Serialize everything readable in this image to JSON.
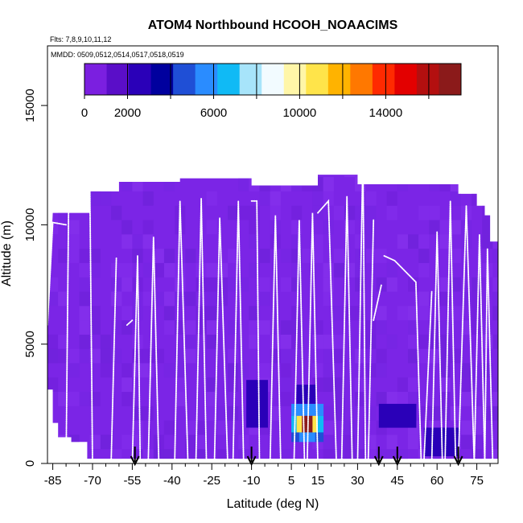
{
  "chart_data": {
    "type": "heatmap",
    "title": "ATOM4 Northbound HCOOH_NOAACIMS",
    "flights_label": "Flts: 7,8,9,10,11,12",
    "dates_label": "MMDD: 0509,0512,0514,0517,0518,0519",
    "xlabel": "Latitude (deg N)",
    "ylabel": "Altitude (m)",
    "xlim": [
      -87,
      83
    ],
    "ylim": [
      0,
      17500
    ],
    "x_ticks": [
      -85,
      -70,
      -55,
      -40,
      -25,
      -10,
      5,
      15,
      30,
      45,
      60,
      75
    ],
    "x_minor_ticks": [
      -80,
      -75,
      -65,
      -60,
      -50,
      -45,
      -35,
      -30,
      -20,
      -15,
      -5,
      0,
      10,
      20,
      25,
      35,
      40,
      50,
      55,
      65,
      70,
      80
    ],
    "y_ticks": [
      0,
      5000,
      10000,
      15000
    ],
    "colorbar": {
      "range": [
        0,
        17500
      ],
      "tick_labels": [
        0,
        2000,
        6000,
        10000,
        14000
      ],
      "colors": [
        "#7b1fe0",
        "#5a0ec8",
        "#2a00b8",
        "#00009e",
        "#1f4fd6",
        "#2a8cff",
        "#10baf5",
        "#a7e4fa",
        "#f2fbff",
        "#fff6a8",
        "#ffe44a",
        "#ffb300",
        "#ff7800",
        "#ff2a00",
        "#e30000",
        "#b30f0f",
        "#8b1a1a"
      ]
    },
    "curtain_top_profile": [
      [
        -87,
        5800
      ],
      [
        -85,
        10500
      ],
      [
        -71,
        10500
      ],
      [
        -71,
        11400
      ],
      [
        -60,
        11400
      ],
      [
        -60,
        11800
      ],
      [
        -37,
        11800
      ],
      [
        -37,
        11950
      ],
      [
        -10,
        11950
      ],
      [
        -10,
        11650
      ],
      [
        15,
        11650
      ],
      [
        15,
        12100
      ],
      [
        30,
        12100
      ],
      [
        30,
        11700
      ],
      [
        68,
        11700
      ],
      [
        68,
        11300
      ],
      [
        75,
        11300
      ],
      [
        75,
        10800
      ],
      [
        78,
        10800
      ],
      [
        78,
        10400
      ],
      [
        80,
        10400
      ],
      [
        80,
        9300
      ],
      [
        83,
        9300
      ]
    ],
    "curtain_bottom_profile": [
      [
        -87,
        3100
      ],
      [
        -85,
        3100
      ],
      [
        -85,
        1700
      ],
      [
        -83,
        1700
      ],
      [
        -83,
        1100
      ],
      [
        -78,
        1100
      ],
      [
        -78,
        900
      ],
      [
        -72,
        900
      ],
      [
        -72,
        200
      ],
      [
        83,
        200
      ]
    ],
    "high_spots": [
      {
        "lat_range": [
          5,
          17
        ],
        "alt_range": [
          1300,
          2000
        ],
        "value_profile": [
          6500,
          11000,
          16500,
          16500,
          11000,
          6500
        ]
      },
      {
        "lat_range": [
          5,
          17
        ],
        "alt_range": [
          2000,
          2500
        ],
        "value_profile": [
          5500,
          6000,
          6000,
          6000,
          5500
        ]
      },
      {
        "lat_range": [
          5,
          17
        ],
        "alt_range": [
          900,
          1300
        ],
        "value_profile": [
          5000,
          5800,
          5800,
          5000
        ]
      },
      {
        "lat_range": [
          7,
          14
        ],
        "alt_range": [
          2500,
          3300
        ],
        "value_profile": [
          2500,
          2800,
          2500
        ]
      },
      {
        "lat_range": [
          -12,
          -4
        ],
        "alt_range": [
          1500,
          3500
        ],
        "value_profile": [
          2800
        ]
      },
      {
        "lat_range": [
          38,
          52
        ],
        "alt_range": [
          1500,
          2500
        ],
        "value_profile": [
          2600
        ]
      },
      {
        "lat_range": [
          55,
          68
        ],
        "alt_range": [
          300,
          1500
        ],
        "value_profile": [
          2400
        ]
      }
    ],
    "flight_tracks": [
      {
        "lat": [
          -87,
          -85,
          -80
        ],
        "alt": [
          5800,
          10100,
          10000
        ]
      },
      {
        "lat": [
          -80,
          -79,
          -71,
          -70
        ],
        "alt": [
          0,
          11200,
          11400,
          0
        ]
      },
      {
        "lat": [
          -63,
          -61
        ],
        "alt": [
          0,
          8600
        ]
      },
      {
        "lat": [
          -57,
          -55
        ],
        "alt": [
          5800,
          6000
        ]
      },
      {
        "lat": [
          -55,
          -53,
          -52
        ],
        "alt": [
          0,
          8700,
          0
        ]
      },
      {
        "lat": [
          -49,
          -47,
          -45
        ],
        "alt": [
          0,
          9500,
          0
        ]
      },
      {
        "lat": [
          -39,
          -37,
          -34
        ],
        "alt": [
          0,
          11000,
          0
        ]
      },
      {
        "lat": [
          -31,
          -29,
          -27
        ],
        "alt": [
          0,
          11100,
          0
        ]
      },
      {
        "lat": [
          -24,
          -22,
          -19
        ],
        "alt": [
          0,
          10300,
          0
        ]
      },
      {
        "lat": [
          -17,
          -15,
          -13
        ],
        "alt": [
          0,
          11000,
          0
        ]
      },
      {
        "lat": [
          -10,
          -8
        ],
        "alt": [
          11000,
          11000
        ]
      },
      {
        "lat": [
          -8,
          -7
        ],
        "alt": [
          11000,
          0
        ]
      },
      {
        "lat": [
          -3,
          -1,
          1
        ],
        "alt": [
          0,
          10400,
          0
        ]
      },
      {
        "lat": [
          6,
          8,
          10
        ],
        "alt": [
          0,
          10200,
          0
        ]
      },
      {
        "lat": [
          11,
          13,
          15
        ],
        "alt": [
          0,
          10500,
          0
        ]
      },
      {
        "lat": [
          15,
          19,
          22
        ],
        "alt": [
          10500,
          11000,
          0
        ]
      },
      {
        "lat": [
          24,
          26,
          28
        ],
        "alt": [
          0,
          11200,
          0
        ]
      },
      {
        "lat": [
          30,
          32,
          33
        ],
        "alt": [
          0,
          12900,
          0
        ]
      },
      {
        "lat": [
          34,
          36
        ],
        "alt": [
          0,
          10200
        ]
      },
      {
        "lat": [
          36,
          39
        ],
        "alt": [
          6000,
          7500
        ]
      },
      {
        "lat": [
          40,
          44,
          52,
          54
        ],
        "alt": [
          8700,
          8500,
          7600,
          0
        ]
      },
      {
        "lat": [
          55,
          58
        ],
        "alt": [
          0,
          7200
        ]
      },
      {
        "lat": [
          58,
          60,
          62
        ],
        "alt": [
          0,
          9700,
          0
        ]
      },
      {
        "lat": [
          63,
          65,
          67
        ],
        "alt": [
          0,
          11000,
          0
        ]
      },
      {
        "lat": [
          68,
          71,
          74
        ],
        "alt": [
          0,
          10800,
          0
        ]
      },
      {
        "lat": [
          74,
          76,
          78
        ],
        "alt": [
          0,
          9600,
          0
        ]
      },
      {
        "lat": [
          78,
          79,
          81
        ],
        "alt": [
          0,
          9000,
          0
        ]
      }
    ],
    "arrow_latitudes": [
      -54,
      -10,
      38,
      45,
      68
    ]
  }
}
